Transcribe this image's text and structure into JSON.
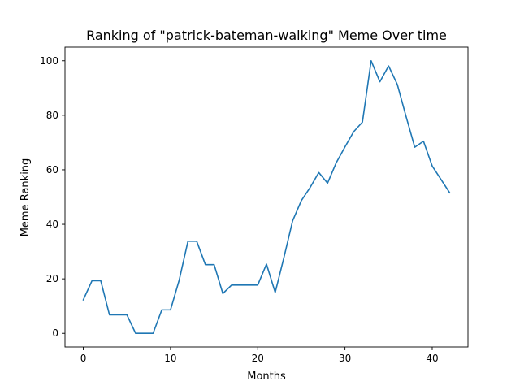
{
  "chart_data": {
    "type": "line",
    "title": "Ranking of \"patrick-bateman-walking\" Meme Over time",
    "xlabel": "Months",
    "ylabel": "Meme Ranking",
    "xlim": [
      -2.1,
      44.1
    ],
    "ylim": [
      -5,
      105
    ],
    "xticks": [
      0,
      10,
      20,
      30,
      40
    ],
    "yticks": [
      0,
      20,
      40,
      60,
      80,
      100
    ],
    "xtick_labels": [
      "0",
      "10",
      "20",
      "30",
      "40"
    ],
    "ytick_labels": [
      "0",
      "20",
      "40",
      "60",
      "80",
      "100"
    ],
    "grid": false,
    "line_color": "#1f77b4",
    "x": [
      0,
      1,
      2,
      3,
      4,
      5,
      6,
      7,
      8,
      9,
      10,
      11,
      12,
      13,
      14,
      15,
      16,
      17,
      18,
      19,
      20,
      21,
      22,
      23,
      24,
      25,
      26,
      27,
      28,
      29,
      30,
      31,
      32,
      33,
      34,
      35,
      36,
      37,
      38,
      39,
      40,
      41,
      42
    ],
    "y": [
      12.3,
      19.3,
      19.3,
      6.8,
      6.8,
      6.8,
      0,
      0,
      0,
      8.6,
      8.6,
      19.6,
      33.8,
      33.8,
      25.2,
      25.2,
      14.6,
      17.7,
      17.7,
      17.7,
      17.7,
      25.4,
      15,
      27.8,
      41.3,
      48.7,
      53.5,
      59,
      55.1,
      62.6,
      68.4,
      74,
      77.5,
      100,
      92.3,
      98.1,
      91.3,
      79.6,
      68.3,
      70.5,
      61.4,
      56.5,
      51.6
    ]
  }
}
